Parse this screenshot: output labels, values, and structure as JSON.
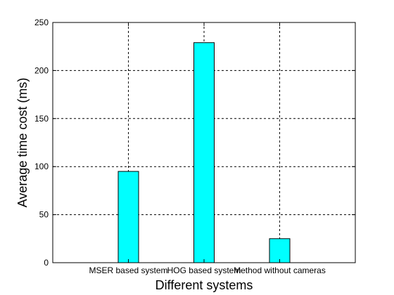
{
  "chart_data": {
    "type": "bar",
    "title": "",
    "xlabel": "Different systems",
    "ylabel": "Average time cost (ms)",
    "categories": [
      "MSER based system",
      "HOG based system",
      "Method without cameras"
    ],
    "values": [
      95,
      229,
      25
    ],
    "ylim": [
      0,
      250
    ],
    "yticks": [
      "0",
      "50",
      "100",
      "150",
      "200",
      "250"
    ],
    "grid": true,
    "bar_color": "#00ffff",
    "bar_edge_color": "#000000",
    "grid_color": "#000000"
  }
}
